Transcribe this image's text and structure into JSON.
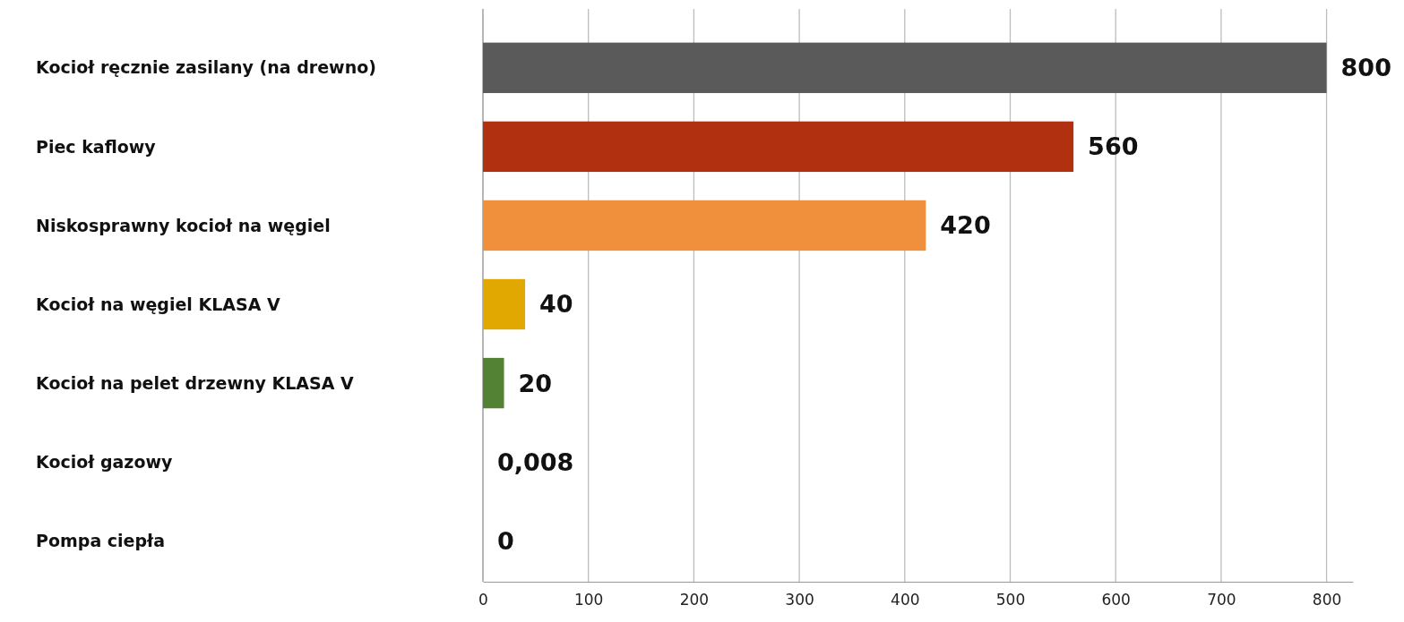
{
  "chart_data": {
    "type": "bar",
    "orientation": "horizontal",
    "categories": [
      "Kocioł ręcznie zasilany (na drewno)",
      "Piec kaflowy",
      "Niskosprawny kocioł na węgiel",
      "Kocioł na węgiel KLASA V",
      "Kocioł na pelet drzewny KLASA V",
      "Kocioł gazowy",
      "Pompa ciepła"
    ],
    "values": [
      800,
      560,
      420,
      40,
      20,
      0.008,
      0
    ],
    "colors": [
      "#5a5a5a",
      "#b03010",
      "#f0903c",
      "#e0a800",
      "#548235",
      "#548235",
      "#9dc3e6"
    ],
    "value_labels": [
      "800",
      "560",
      "420",
      "40",
      "20",
      "0,008",
      "0"
    ],
    "xlim": [
      0,
      825
    ],
    "xticks": [
      0,
      100,
      200,
      300,
      400,
      500,
      600,
      700,
      800
    ],
    "grid": "x"
  }
}
